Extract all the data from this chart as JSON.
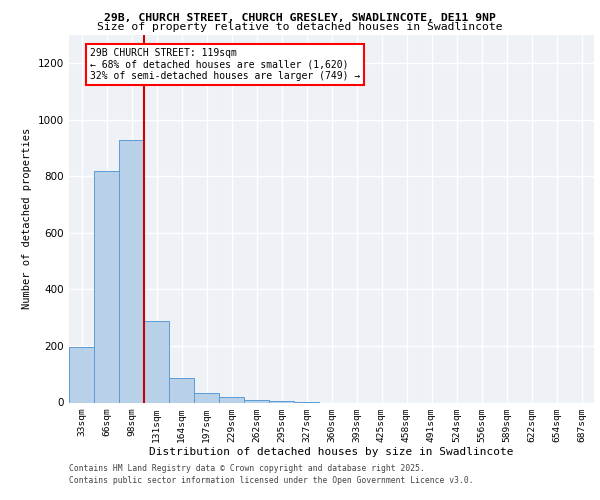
{
  "title1": "29B, CHURCH STREET, CHURCH GRESLEY, SWADLINCOTE, DE11 9NP",
  "title2": "Size of property relative to detached houses in Swadlincote",
  "xlabel": "Distribution of detached houses by size in Swadlincote",
  "ylabel": "Number of detached properties",
  "categories": [
    "33sqm",
    "66sqm",
    "98sqm",
    "131sqm",
    "164sqm",
    "197sqm",
    "229sqm",
    "262sqm",
    "295sqm",
    "327sqm",
    "360sqm",
    "393sqm",
    "425sqm",
    "458sqm",
    "491sqm",
    "524sqm",
    "556sqm",
    "589sqm",
    "622sqm",
    "654sqm",
    "687sqm"
  ],
  "values": [
    195,
    820,
    930,
    290,
    85,
    33,
    18,
    10,
    5,
    2,
    0,
    0,
    0,
    0,
    0,
    0,
    0,
    0,
    0,
    0,
    0
  ],
  "bar_color": "#b8d0e8",
  "bar_edge_color": "#5b9bd5",
  "highlight_bar_index": 2,
  "highlight_color": "#cc0000",
  "ylim": [
    0,
    1300
  ],
  "yticks": [
    0,
    200,
    400,
    600,
    800,
    1000,
    1200
  ],
  "annotation_title": "29B CHURCH STREET: 119sqm",
  "annotation_line1": "← 68% of detached houses are smaller (1,620)",
  "annotation_line2": "32% of semi-detached houses are larger (749) →",
  "footer1": "Contains HM Land Registry data © Crown copyright and database right 2025.",
  "footer2": "Contains public sector information licensed under the Open Government Licence v3.0.",
  "background_color": "#eef2f7"
}
